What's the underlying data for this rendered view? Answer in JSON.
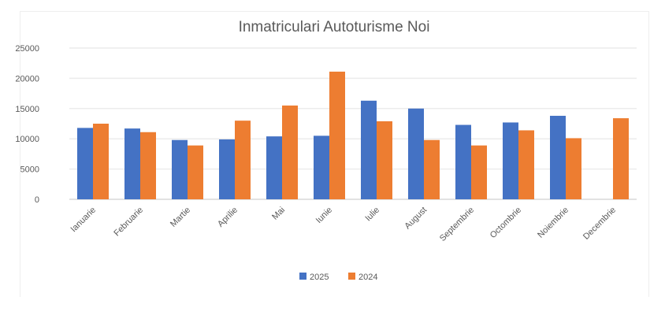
{
  "chart_data": {
    "type": "bar",
    "title": "Inmatriculari Autoturisme Noi",
    "categories": [
      "Ianuarie",
      "Februarie",
      "Martie",
      "Aprilie",
      "Mai",
      "Iunie",
      "Iulie",
      "August",
      "Septembrie",
      "Octombrie",
      "Noiembrie",
      "Decembrie"
    ],
    "series": [
      {
        "name": "2025",
        "color": "#4472C4",
        "values": [
          11800,
          11700,
          9800,
          9900,
          10400,
          10500,
          16300,
          15000,
          12300,
          12700,
          13800,
          null
        ]
      },
      {
        "name": "2024",
        "color": "#ED7D31",
        "values": [
          12500,
          11100,
          8900,
          13000,
          15500,
          21100,
          12900,
          9800,
          8900,
          11400,
          10100,
          13400
        ]
      }
    ],
    "ylim": [
      0,
      25000
    ],
    "yticks": [
      0,
      5000,
      10000,
      15000,
      20000,
      25000
    ],
    "grid": true,
    "legend": "bottom"
  }
}
